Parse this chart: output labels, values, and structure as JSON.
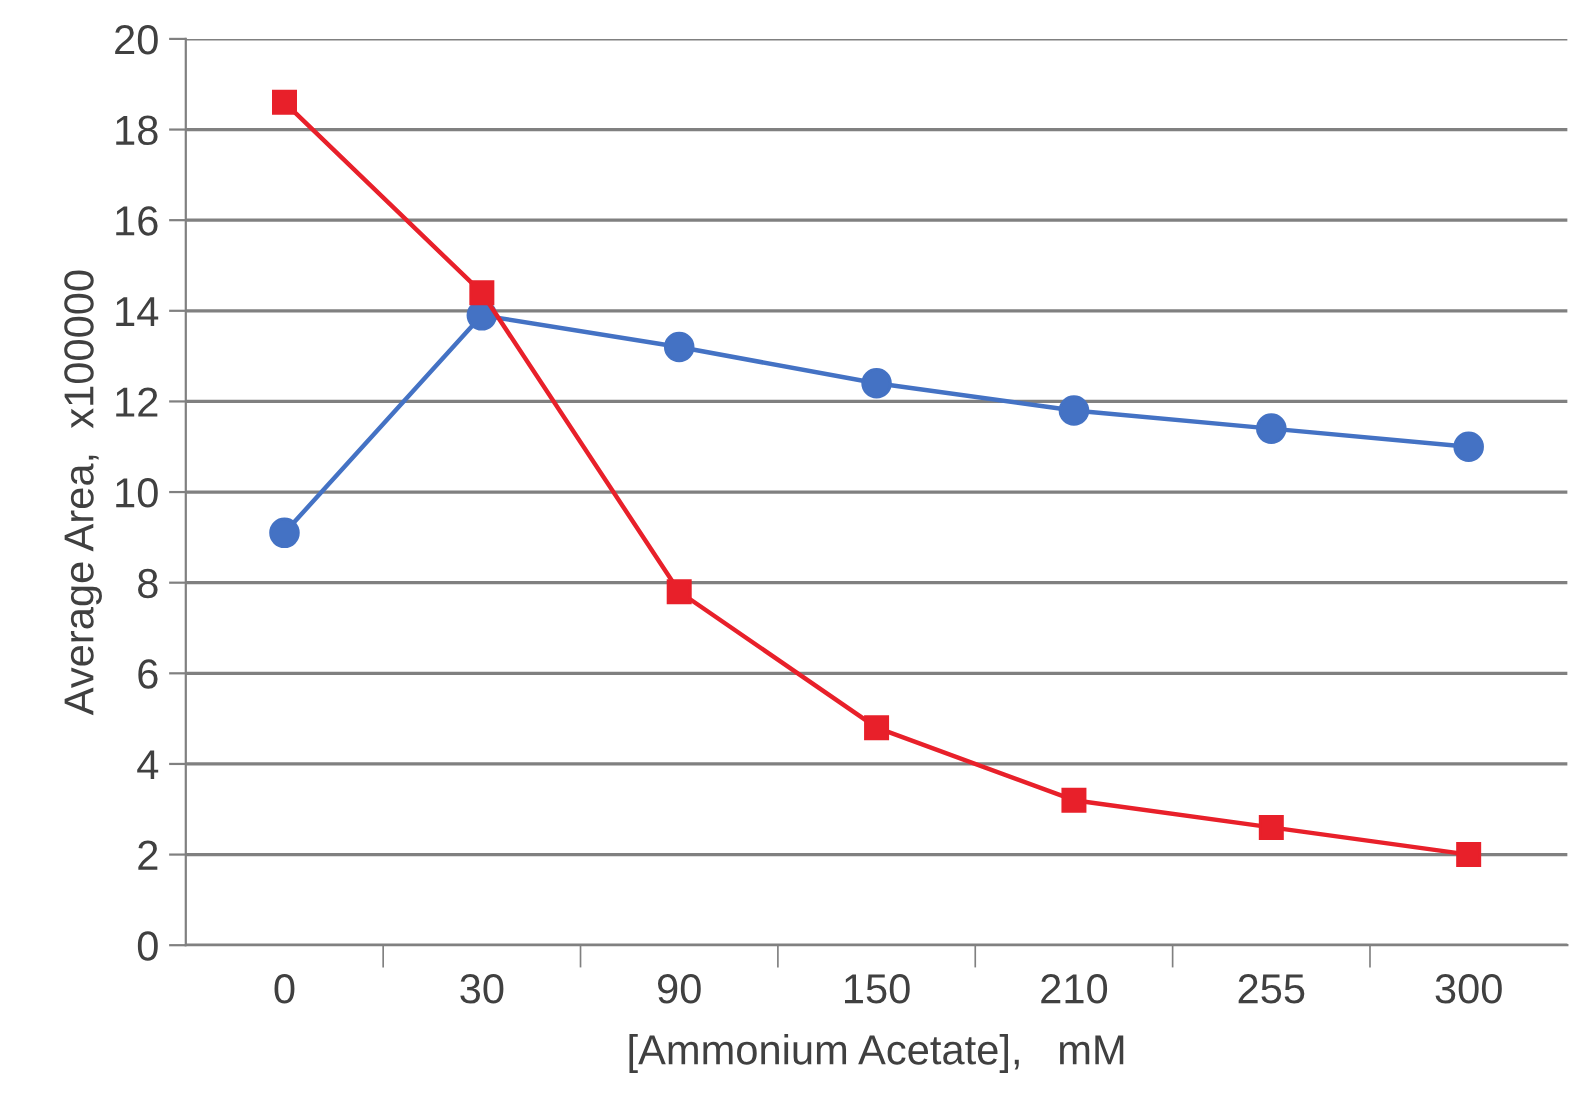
{
  "chart_data": {
    "type": "line",
    "xlabel": "[Ammonium Acetate],   mM",
    "ylabel": "Average Area,  x100000",
    "categories": [
      "0",
      "30",
      "90",
      "150",
      "210",
      "255",
      "300"
    ],
    "series": [
      {
        "color": "#4472c4",
        "marker": "circle",
        "values": [
          9.1,
          13.9,
          13.2,
          12.4,
          11.8,
          11.4,
          11.0
        ]
      },
      {
        "color": "#e8202a",
        "marker": "square",
        "values": [
          18.6,
          14.4,
          7.8,
          4.8,
          3.2,
          2.6,
          2.0
        ]
      }
    ],
    "ylim": [
      0,
      20
    ],
    "yticks": [
      0,
      2,
      4,
      6,
      8,
      10,
      12,
      14,
      16,
      18,
      20
    ],
    "grid": "y",
    "line_style": "solid"
  }
}
